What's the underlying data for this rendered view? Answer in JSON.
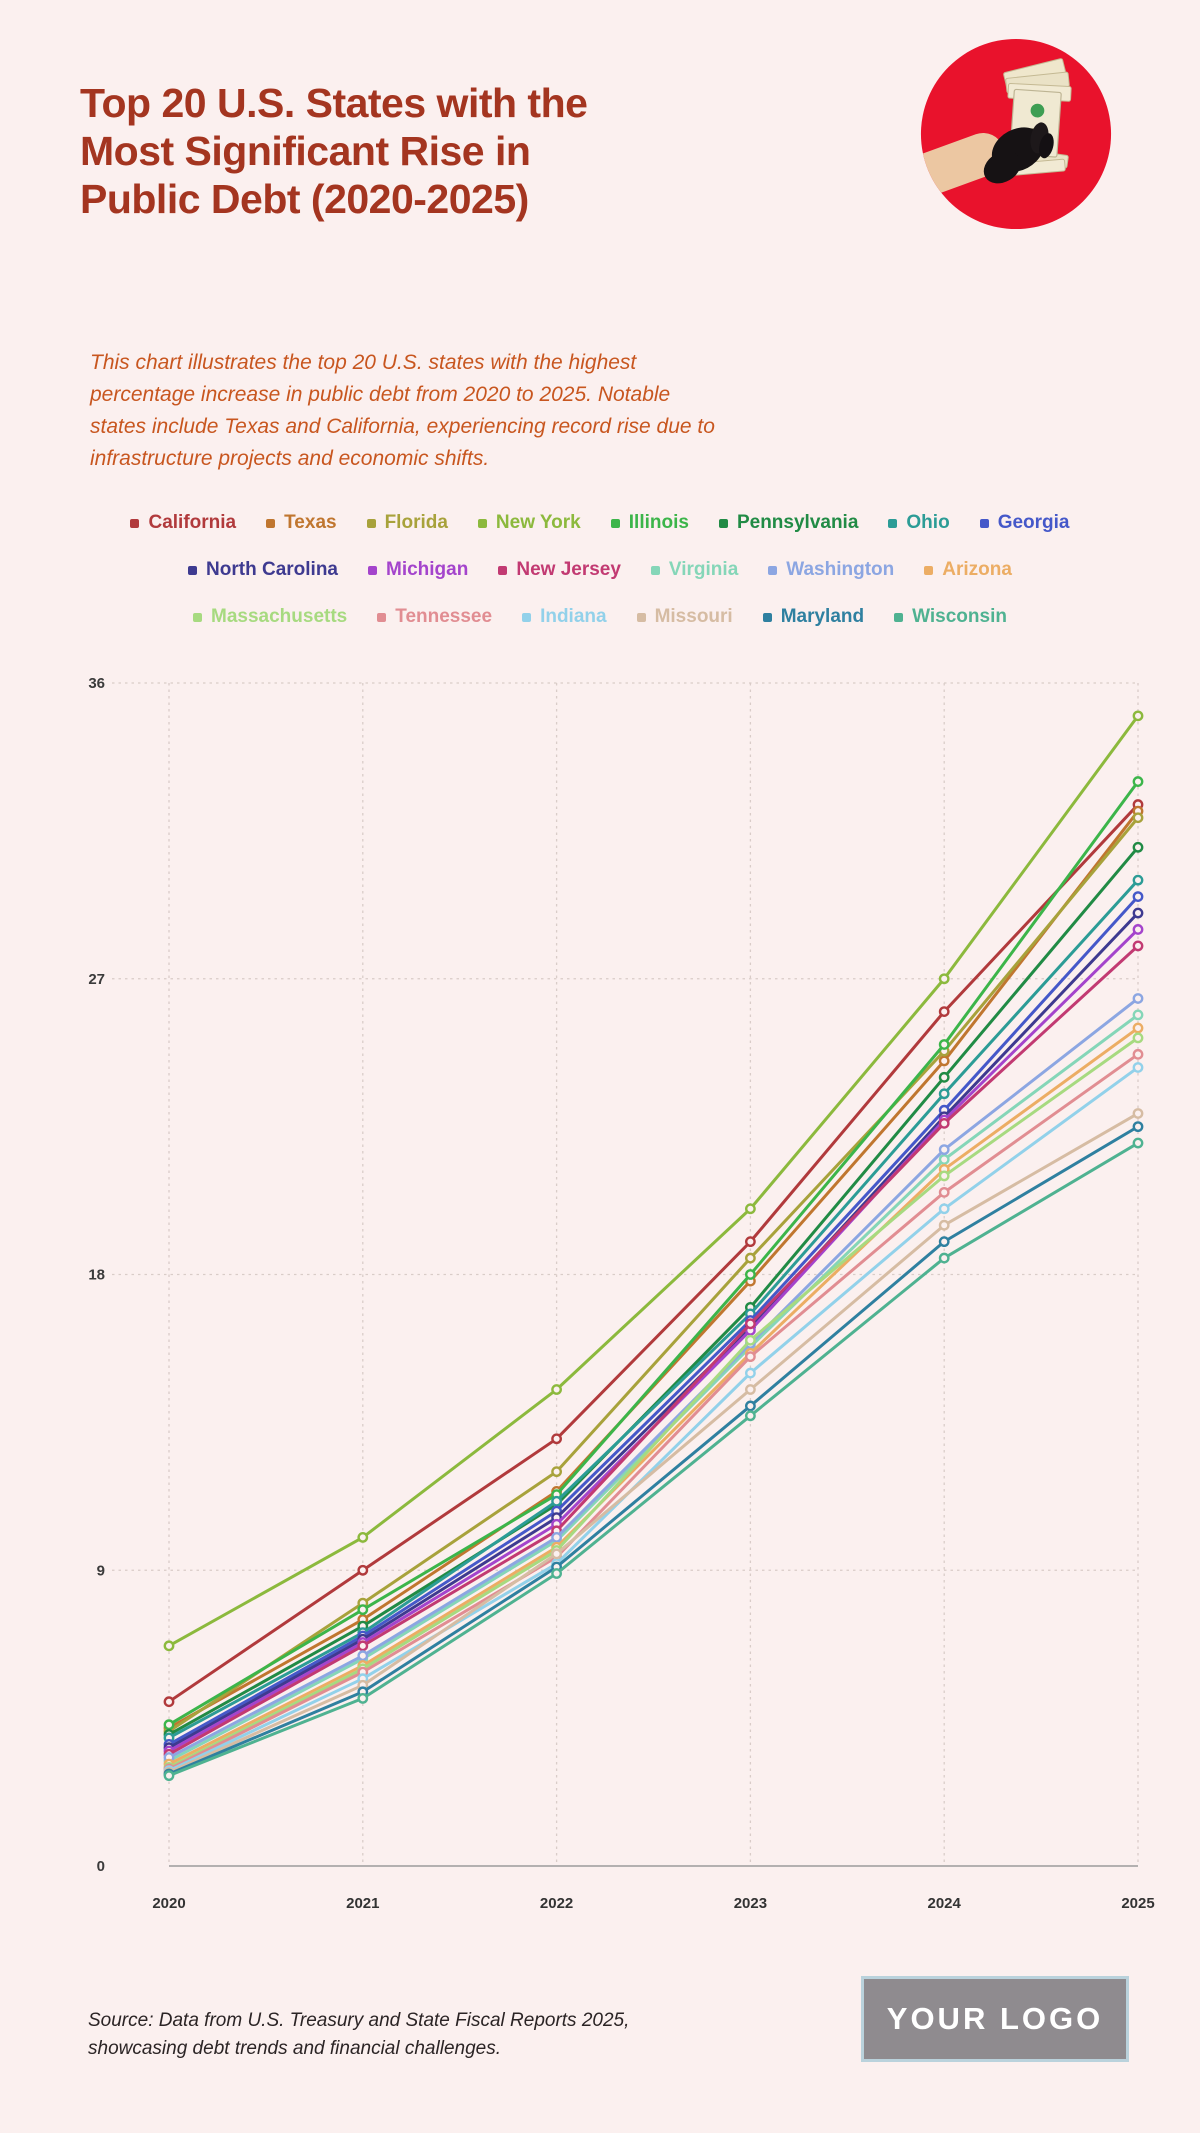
{
  "page": {
    "background": "#FBF0EF"
  },
  "header": {
    "title": "Top 20 U.S. States with the Most Significant Rise in Public Debt (2020-2025)",
    "title_color": "#A43520",
    "image": "red-circle-photo-of-gloved-hand-holding-fanned-dollar-bills"
  },
  "description": "This chart illustrates the top 20 U.S. states with the highest percentage increase in public debt from 2020 to 2025. Notable states include Texas and California, experiencing record rise due to infrastructure projects and economic shifts.",
  "chart_data": {
    "type": "line",
    "x": [
      "2020",
      "2021",
      "2022",
      "2023",
      "2024",
      "2025"
    ],
    "ylim": [
      0,
      36
    ],
    "yticks": [
      0,
      9,
      18,
      27,
      36
    ],
    "grid": "dashed",
    "legend_position": "top",
    "marker": "open-circle",
    "series": [
      {
        "name": "California",
        "color": "#B13A3C",
        "values": [
          5.0,
          9.0,
          13.0,
          19.0,
          26.0,
          32.3
        ]
      },
      {
        "name": "Texas",
        "color": "#C0762F",
        "values": [
          4.2,
          7.5,
          11.4,
          17.8,
          24.5,
          32.1
        ]
      },
      {
        "name": "Florida",
        "color": "#A8A23B",
        "values": [
          4.1,
          8.0,
          12.0,
          18.5,
          24.8,
          31.9
        ]
      },
      {
        "name": "New York",
        "color": "#8CB93D",
        "values": [
          6.7,
          10.0,
          14.5,
          20.0,
          27.0,
          35.0
        ]
      },
      {
        "name": "Illinois",
        "color": "#3CB54A",
        "values": [
          4.3,
          7.8,
          11.3,
          18.0,
          25.0,
          33.0
        ]
      },
      {
        "name": "Pennsylvania",
        "color": "#218B45",
        "values": [
          4.0,
          7.3,
          11.0,
          17.0,
          24.0,
          31.0
        ]
      },
      {
        "name": "Ohio",
        "color": "#2C9C96",
        "values": [
          3.9,
          7.1,
          11.1,
          16.8,
          23.5,
          30.0
        ]
      },
      {
        "name": "Georgia",
        "color": "#4558C9",
        "values": [
          3.7,
          7.0,
          10.8,
          16.6,
          23.0,
          29.5
        ]
      },
      {
        "name": "North Carolina",
        "color": "#3E3A90",
        "values": [
          3.6,
          6.9,
          10.6,
          16.4,
          22.8,
          29.0
        ]
      },
      {
        "name": "Michigan",
        "color": "#A444CC",
        "values": [
          3.5,
          6.8,
          10.4,
          16.3,
          22.7,
          28.5
        ]
      },
      {
        "name": "New Jersey",
        "color": "#C23A72",
        "values": [
          3.4,
          6.7,
          10.2,
          16.5,
          22.6,
          28.0
        ]
      },
      {
        "name": "Virginia",
        "color": "#85D6B8",
        "values": [
          3.2,
          6.3,
          9.9,
          15.8,
          21.5,
          25.9
        ]
      },
      {
        "name": "Washington",
        "color": "#8CA6E2",
        "values": [
          3.3,
          6.4,
          10.0,
          15.9,
          21.8,
          26.4
        ]
      },
      {
        "name": "Arizona",
        "color": "#ECAD64",
        "values": [
          3.1,
          6.1,
          9.7,
          15.6,
          21.2,
          25.5
        ]
      },
      {
        "name": "Massachusetts",
        "color": "#A7DA80",
        "values": [
          3.0,
          6.0,
          9.6,
          16.0,
          21.0,
          25.2
        ]
      },
      {
        "name": "Tennessee",
        "color": "#E18D92",
        "values": [
          2.95,
          5.9,
          9.4,
          15.5,
          20.5,
          24.7
        ]
      },
      {
        "name": "Indiana",
        "color": "#92D1EA",
        "values": [
          2.9,
          5.7,
          9.2,
          15.0,
          20.0,
          24.3
        ]
      },
      {
        "name": "Missouri",
        "color": "#D6BCA3",
        "values": [
          2.85,
          5.5,
          9.5,
          14.5,
          19.5,
          22.9
        ]
      },
      {
        "name": "Maryland",
        "color": "#2F80A0",
        "values": [
          2.8,
          5.3,
          9.1,
          14.0,
          19.0,
          22.5
        ]
      },
      {
        "name": "Wisconsin",
        "color": "#4FB291",
        "values": [
          2.75,
          5.1,
          8.9,
          13.7,
          18.5,
          22.0
        ]
      }
    ],
    "legend_rows": [
      8,
      6,
      6
    ]
  },
  "footer": {
    "source": "Source: Data from U.S. Treasury and State Fiscal Reports 2025, showcasing debt trends and financial challenges.",
    "logo_text": "YOUR LOGO"
  }
}
